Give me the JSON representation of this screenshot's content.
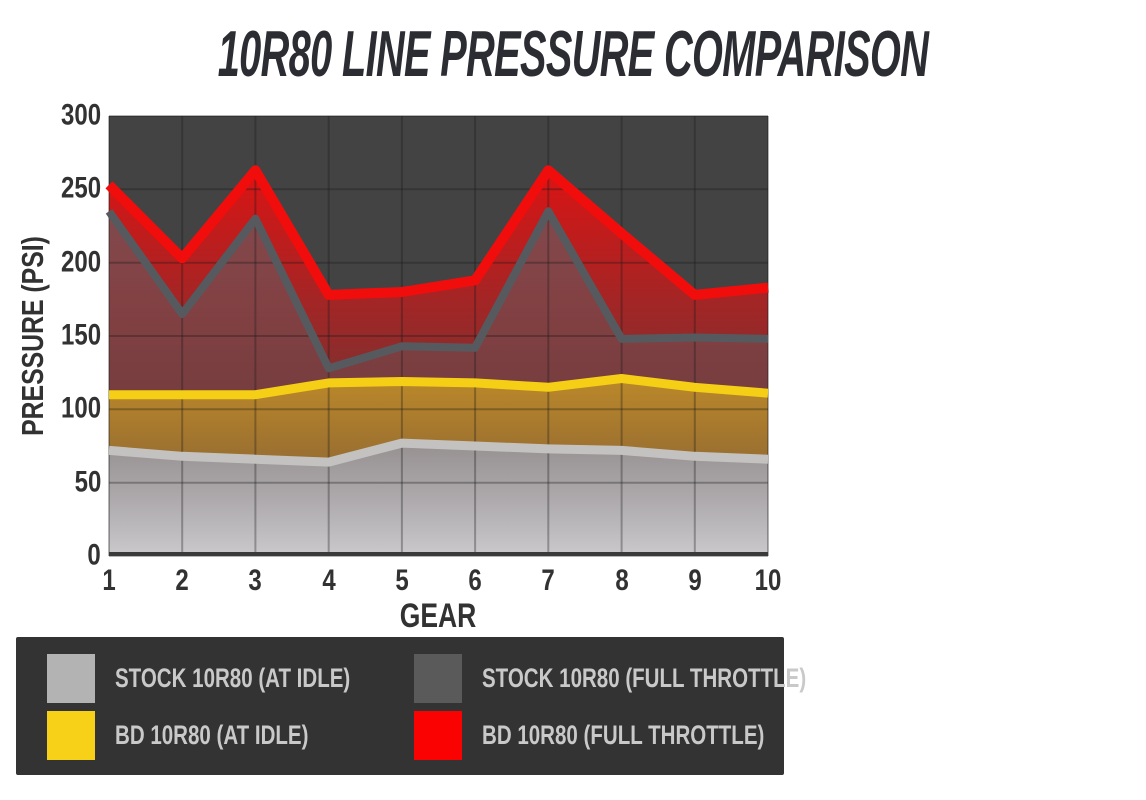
{
  "title": "10R80 LINE PRESSURE COMPARISON",
  "chart_data": {
    "type": "area",
    "title": "10R80 LINE PRESSURE COMPARISON",
    "xlabel": "GEAR",
    "ylabel": "PRESSURE (PSI)",
    "x": [
      1,
      2,
      3,
      4,
      5,
      6,
      7,
      8,
      9,
      10
    ],
    "ylim": [
      0,
      300
    ],
    "yticks": [
      0,
      50,
      100,
      150,
      200,
      250,
      300
    ],
    "grid": true,
    "plot_bg": "#434343",
    "grid_color": "rgba(25,25,25,0.32)",
    "axis_line_color": "#3a3a3a",
    "legend_position": "bottom",
    "series": [
      {
        "name": "BD 10R80 (FULL THROTTLE)",
        "line_color": "#f20d0d",
        "line_width": 10,
        "fill_top": "rgba(235,15,15,0.9)",
        "fill_mid": "rgba(235,15,15,0.42)",
        "fill_bottom": "rgba(235,15,15,0.05)",
        "values": [
          253,
          203,
          263,
          178,
          180,
          188,
          263,
          220,
          178,
          183
        ]
      },
      {
        "name": "STOCK 10R80 (FULL THROTTLE)",
        "line_color": "#565a5e",
        "line_width": 8,
        "fill_top": "rgba(95,95,100,0.7)",
        "fill_mid": "rgba(95,95,100,0.3)",
        "fill_bottom": "rgba(95,95,100,0.04)",
        "values": [
          235,
          165,
          230,
          128,
          143,
          142,
          235,
          148,
          149,
          148
        ]
      },
      {
        "name": "BD 10R80 (AT IDLE)",
        "line_color": "#f5cf16",
        "line_width": 9,
        "fill_top": "rgba(246,205,22,0.52)",
        "fill_mid": "rgba(246,205,22,0.32)",
        "fill_bottom": "rgba(246,205,22,0.15)",
        "values": [
          110,
          110,
          110,
          118,
          119,
          118,
          115,
          121,
          115,
          111
        ]
      },
      {
        "name": "STOCK 10R80 (AT IDLE)",
        "line_color": "#c3c2c0",
        "line_width": 9,
        "fill_top": "rgba(150,146,150,0.95)",
        "fill_mid": "rgba(175,172,176,0.97)",
        "fill_bottom": "rgba(203,201,204,1)",
        "values": [
          72,
          68,
          66,
          64,
          77,
          75,
          73,
          72,
          68,
          66
        ]
      }
    ]
  },
  "axes": {
    "x_title": "GEAR",
    "y_title": "PRESSURE (PSI)"
  },
  "legend": {
    "items": [
      {
        "label": "STOCK 10R80 (AT IDLE)",
        "color": "#b3b3b3"
      },
      {
        "label": "STOCK 10R80 (FULL THROTTLE)",
        "color": "#5a5a5a"
      },
      {
        "label": "BD 10R80 (AT IDLE)",
        "color": "#f6d118"
      },
      {
        "label": "BD 10R80 (FULL THROTTLE)",
        "color": "#fa0202"
      }
    ]
  }
}
